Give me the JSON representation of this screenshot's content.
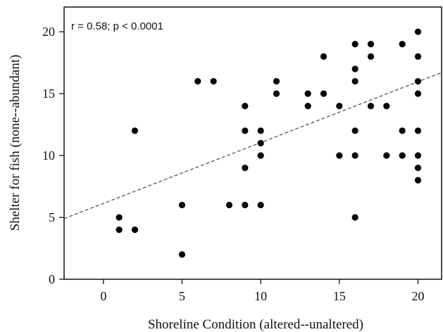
{
  "chart_data": {
    "type": "scatter",
    "xlabel": "Shoreline Condition (altered--unaltered)",
    "ylabel": "Shelter for fish (none--abundant)",
    "annotation": "r = 0.58; p < 0.0001",
    "xlim": [
      -2.5,
      21.5
    ],
    "ylim": [
      0,
      22
    ],
    "x_ticks": [
      0,
      5,
      10,
      15,
      20
    ],
    "y_ticks": [
      0,
      5,
      10,
      15,
      20
    ],
    "grid": false,
    "points": [
      {
        "x": 1,
        "y": 5
      },
      {
        "x": 1,
        "y": 4
      },
      {
        "x": 2,
        "y": 12
      },
      {
        "x": 2,
        "y": 4
      },
      {
        "x": 5,
        "y": 6
      },
      {
        "x": 5,
        "y": 2
      },
      {
        "x": 6,
        "y": 16
      },
      {
        "x": 7,
        "y": 16
      },
      {
        "x": 8,
        "y": 6
      },
      {
        "x": 9,
        "y": 14
      },
      {
        "x": 9,
        "y": 12
      },
      {
        "x": 9,
        "y": 9
      },
      {
        "x": 9,
        "y": 6
      },
      {
        "x": 10,
        "y": 12
      },
      {
        "x": 10,
        "y": 11
      },
      {
        "x": 10,
        "y": 10
      },
      {
        "x": 10,
        "y": 6
      },
      {
        "x": 11,
        "y": 16
      },
      {
        "x": 11,
        "y": 15
      },
      {
        "x": 13,
        "y": 15
      },
      {
        "x": 13,
        "y": 14
      },
      {
        "x": 14,
        "y": 18
      },
      {
        "x": 14,
        "y": 15
      },
      {
        "x": 15,
        "y": 14
      },
      {
        "x": 15,
        "y": 10
      },
      {
        "x": 16,
        "y": 19
      },
      {
        "x": 16,
        "y": 17
      },
      {
        "x": 16,
        "y": 16
      },
      {
        "x": 16,
        "y": 12
      },
      {
        "x": 16,
        "y": 10
      },
      {
        "x": 16,
        "y": 5
      },
      {
        "x": 17,
        "y": 19
      },
      {
        "x": 17,
        "y": 18
      },
      {
        "x": 17,
        "y": 14
      },
      {
        "x": 18,
        "y": 14
      },
      {
        "x": 18,
        "y": 10
      },
      {
        "x": 19,
        "y": 19
      },
      {
        "x": 19,
        "y": 12
      },
      {
        "x": 19,
        "y": 10
      },
      {
        "x": 20,
        "y": 20
      },
      {
        "x": 20,
        "y": 18
      },
      {
        "x": 20,
        "y": 16
      },
      {
        "x": 20,
        "y": 15
      },
      {
        "x": 20,
        "y": 12
      },
      {
        "x": 20,
        "y": 10
      },
      {
        "x": 20,
        "y": 9
      },
      {
        "x": 20,
        "y": 8
      }
    ],
    "trendline": {
      "style": "dashed",
      "x": [
        -2.5,
        21.5
      ],
      "y": [
        4.9,
        16.7
      ]
    }
  }
}
